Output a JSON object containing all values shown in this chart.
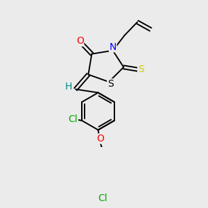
{
  "bg_color": "#ebebeb",
  "atom_colors": {
    "O": "#ff0000",
    "N": "#0000ff",
    "S_thioxo": "#cccc00",
    "S_ring": "#000000",
    "Cl": "#00aa00",
    "H": "#008888",
    "C": "#000000"
  },
  "bond_width": 1.4,
  "font_size": 9.5
}
